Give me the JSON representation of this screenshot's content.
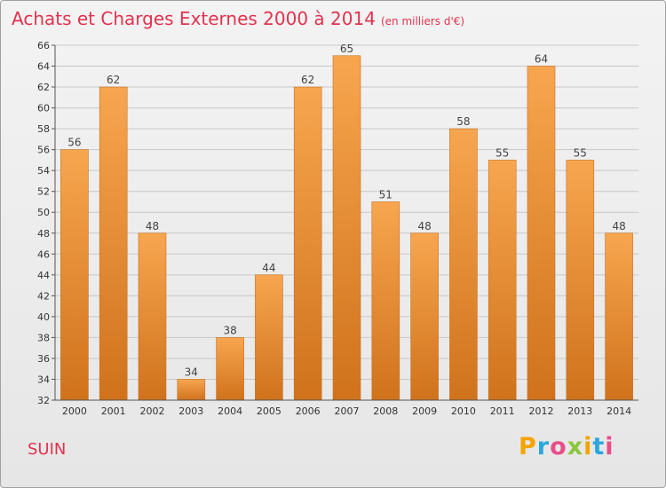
{
  "title": "Achats et Charges Externes 2000 à 2014",
  "subtitle": "(en milliers d'€)",
  "place": "SUIN",
  "brand": [
    "P",
    "r",
    "o",
    "x",
    "i",
    "t",
    "i"
  ],
  "colors": {
    "title": "#e0334f",
    "bar_top": "#f7a64f",
    "bar_bottom": "#d0721c",
    "grid": "#c8c8c8"
  },
  "chart_data": {
    "type": "bar",
    "title": "Achats et Charges Externes 2000 à 2014",
    "subtitle": "(en milliers d'€)",
    "categories": [
      "2000",
      "2001",
      "2002",
      "2003",
      "2004",
      "2005",
      "2006",
      "2007",
      "2008",
      "2009",
      "2010",
      "2011",
      "2012",
      "2013",
      "2014"
    ],
    "values": [
      56,
      62,
      48,
      34,
      38,
      44,
      62,
      65,
      51,
      48,
      58,
      55,
      64,
      55,
      48
    ],
    "data_labels": [
      "56",
      "62",
      "48",
      "34",
      "38",
      "44",
      "62",
      "65",
      "51",
      "48",
      "58",
      "55",
      "64",
      "55",
      "48"
    ],
    "ylim": [
      32,
      66
    ],
    "yticks": [
      "32",
      "34",
      "36",
      "38",
      "40",
      "42",
      "44",
      "46",
      "48",
      "50",
      "52",
      "54",
      "56",
      "58",
      "60",
      "62",
      "64",
      "66"
    ],
    "grid": true,
    "legend": "none"
  }
}
